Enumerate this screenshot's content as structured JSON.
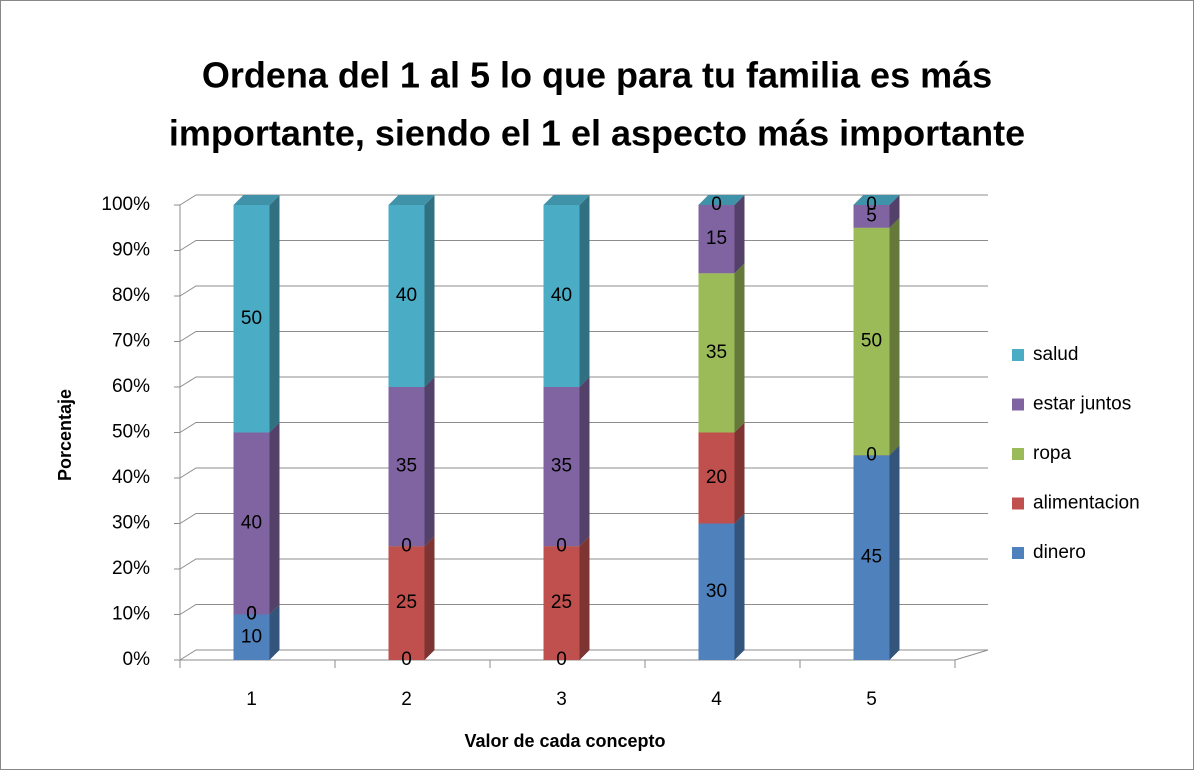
{
  "chart_data": {
    "type": "bar3d_stacked",
    "title": [
      "Ordena del 1 al 5 lo que para tu familia es más",
      "importante, siendo el 1 el aspecto más importante"
    ],
    "x_label": "Valor de cada concepto",
    "y_label": "Porcentaje",
    "categories": [
      "1",
      "2",
      "3",
      "4",
      "5"
    ],
    "series": [
      {
        "name": "dinero",
        "color": "#4f81bd",
        "values": [
          10,
          0,
          0,
          30,
          45
        ]
      },
      {
        "name": "alimentacion",
        "color": "#c0504d",
        "values": [
          0,
          25,
          25,
          20,
          0
        ]
      },
      {
        "name": "ropa",
        "color": "#9bbb59",
        "values": [
          0,
          0,
          0,
          35,
          50
        ]
      },
      {
        "name": "estar juntos",
        "color": "#8064a2",
        "values": [
          40,
          35,
          35,
          15,
          5
        ]
      },
      {
        "name": "salud",
        "color": "#4bacc6",
        "values": [
          50,
          40,
          40,
          0,
          0
        ]
      }
    ],
    "ylim": [
      0,
      100
    ],
    "yticks": [
      {
        "value": 0,
        "label": "0%"
      },
      {
        "value": 10,
        "label": "10%"
      },
      {
        "value": 20,
        "label": "20%"
      },
      {
        "value": 30,
        "label": "30%"
      },
      {
        "value": 40,
        "label": "40%"
      },
      {
        "value": 50,
        "label": "50%"
      },
      {
        "value": 60,
        "label": "60%"
      },
      {
        "value": 70,
        "label": "70%"
      },
      {
        "value": 80,
        "label": "80%"
      },
      {
        "value": 90,
        "label": "90%"
      },
      {
        "value": 100,
        "label": "100%"
      }
    ],
    "grid": true,
    "legend": "right"
  }
}
